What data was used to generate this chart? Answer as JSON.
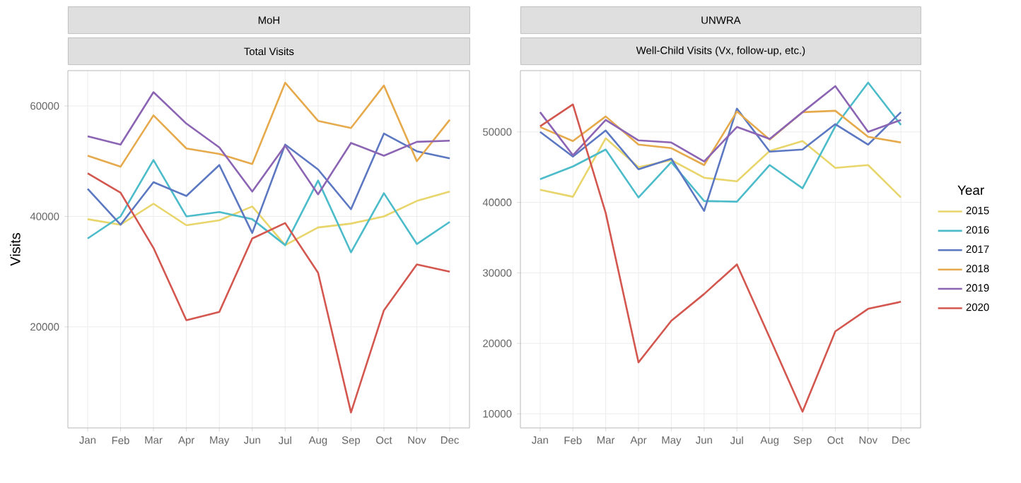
{
  "chart_data": [
    {
      "type": "line",
      "title": "MoH",
      "subtitle": "Total Visits",
      "ylabel": "Visits",
      "categories": [
        "Jan",
        "Feb",
        "Mar",
        "Apr",
        "May",
        "Jun",
        "Jul",
        "Aug",
        "Sep",
        "Oct",
        "Nov",
        "Dec"
      ],
      "ylim": [
        1700,
        66400
      ],
      "yticks": [
        20000,
        40000,
        60000
      ],
      "grid": true,
      "series": [
        {
          "color": "#e8d56c",
          "values": [
            39500,
            38500,
            42300,
            38400,
            39300,
            41800,
            34800,
            38000,
            38700,
            40000,
            42800,
            44500
          ]
        },
        {
          "color": "#4cbccb",
          "values": [
            36000,
            40000,
            50200,
            40000,
            40800,
            39500,
            34800,
            46500,
            33500,
            44200,
            35000,
            39000
          ]
        },
        {
          "color": "#5c78c2",
          "values": [
            45000,
            38500,
            46200,
            43700,
            49300,
            37000,
            53000,
            48500,
            41300,
            55000,
            51800,
            50500
          ]
        },
        {
          "color": "#e6aa4c",
          "values": [
            51000,
            49000,
            58300,
            52300,
            51300,
            49500,
            64200,
            57300,
            56000,
            63700,
            50000,
            57500
          ]
        },
        {
          "color": "#8c64b4",
          "values": [
            54500,
            53000,
            62500,
            56800,
            52500,
            44500,
            52800,
            44000,
            53300,
            51000,
            53500,
            53700
          ]
        },
        {
          "color": "#d3574f",
          "values": [
            47800,
            44300,
            34300,
            21200,
            22700,
            36000,
            38800,
            29800,
            4500,
            23000,
            31300,
            30000
          ]
        }
      ]
    },
    {
      "type": "line",
      "title": "UNWRA",
      "subtitle": "Well-Child Visits (Vx, follow-up, etc.)",
      "categories": [
        "Jan",
        "Feb",
        "Mar",
        "Apr",
        "May",
        "Jun",
        "Jul",
        "Aug",
        "Sep",
        "Oct",
        "Nov",
        "Dec"
      ],
      "ylim": [
        8000,
        58700
      ],
      "yticks": [
        10000,
        20000,
        30000,
        40000,
        50000
      ],
      "grid": true,
      "legend": "right",
      "legend_title": "Year",
      "series": [
        {
          "name": "2015",
          "color": "#e8d56c",
          "values": [
            41800,
            40800,
            49100,
            45000,
            46000,
            43500,
            43000,
            47300,
            48700,
            44900,
            45300,
            40700
          ]
        },
        {
          "name": "2016",
          "color": "#4cbccb",
          "values": [
            43300,
            45100,
            47500,
            40700,
            45700,
            40200,
            40100,
            45300,
            42000,
            50800,
            57000,
            51000
          ]
        },
        {
          "name": "2017",
          "color": "#5c78c2",
          "values": [
            50000,
            46500,
            50200,
            44700,
            46200,
            38800,
            53300,
            47200,
            47500,
            51100,
            48200,
            52800
          ]
        },
        {
          "name": "2018",
          "color": "#e6aa4c",
          "values": [
            50700,
            48700,
            52200,
            48200,
            47700,
            45300,
            52900,
            48900,
            52800,
            53000,
            49300,
            48500
          ]
        },
        {
          "name": "2019",
          "color": "#8c64b4",
          "values": [
            52800,
            46700,
            51700,
            48800,
            48500,
            45800,
            50700,
            49000,
            52800,
            56500,
            50000,
            51700
          ]
        },
        {
          "name": "2020",
          "color": "#d3574f",
          "values": [
            50800,
            53900,
            38500,
            17300,
            23200,
            27000,
            31200,
            20800,
            10300,
            21700,
            24900,
            25900
          ]
        }
      ]
    }
  ]
}
